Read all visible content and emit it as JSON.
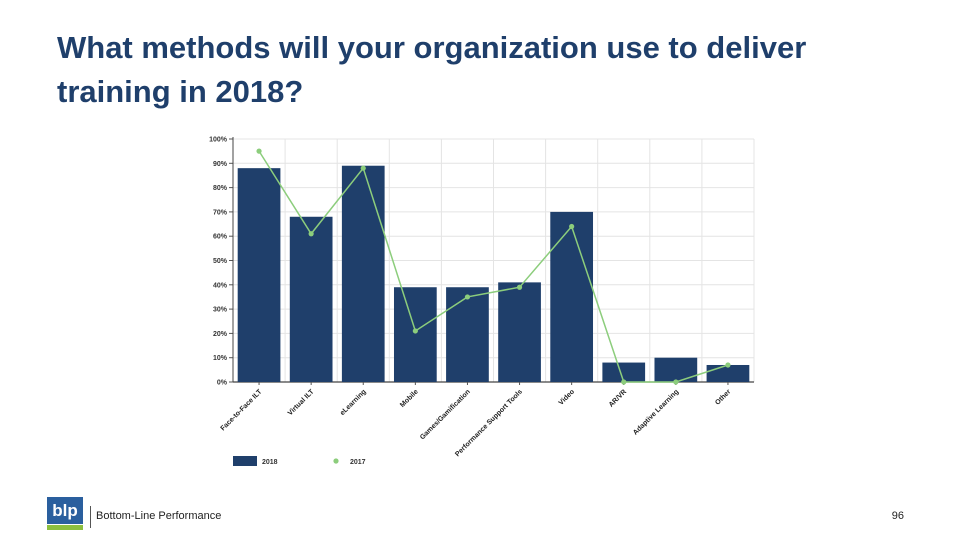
{
  "slide": {
    "title": "What methods will your organization use to deliver training in 2018?"
  },
  "footer": {
    "logo_text": "blp",
    "company": "Bottom-Line Performance",
    "page_number": "96"
  },
  "colors": {
    "bar_2018": "#1f3f6b",
    "line_2017": "#8ccd7c",
    "title": "#1f3f6b",
    "grid": "#e4e4e4"
  },
  "chart_data": {
    "type": "bar",
    "title": "",
    "xlabel": "",
    "ylabel": "",
    "ylim": [
      0,
      100
    ],
    "y_unit": "%",
    "yticks": [
      "0%",
      "10%",
      "20%",
      "30%",
      "40%",
      "50%",
      "60%",
      "70%",
      "80%",
      "90%",
      "100%"
    ],
    "categories": [
      "Face-to-Face ILT",
      "Virtual ILT",
      "eLearning",
      "Mobile",
      "Games/Gamification",
      "Performance Support Tools",
      "Video",
      "AR/VR",
      "Adaptive Learning",
      "Other"
    ],
    "series": [
      {
        "name": "2018",
        "kind": "bar",
        "values": [
          88,
          68,
          89,
          39,
          39,
          41,
          70,
          8,
          10,
          7
        ]
      },
      {
        "name": "2017",
        "kind": "line",
        "values": [
          95,
          61,
          88,
          21,
          35,
          39,
          64,
          0,
          0,
          7
        ]
      }
    ],
    "grid": true,
    "legend_position": "bottom-left"
  }
}
